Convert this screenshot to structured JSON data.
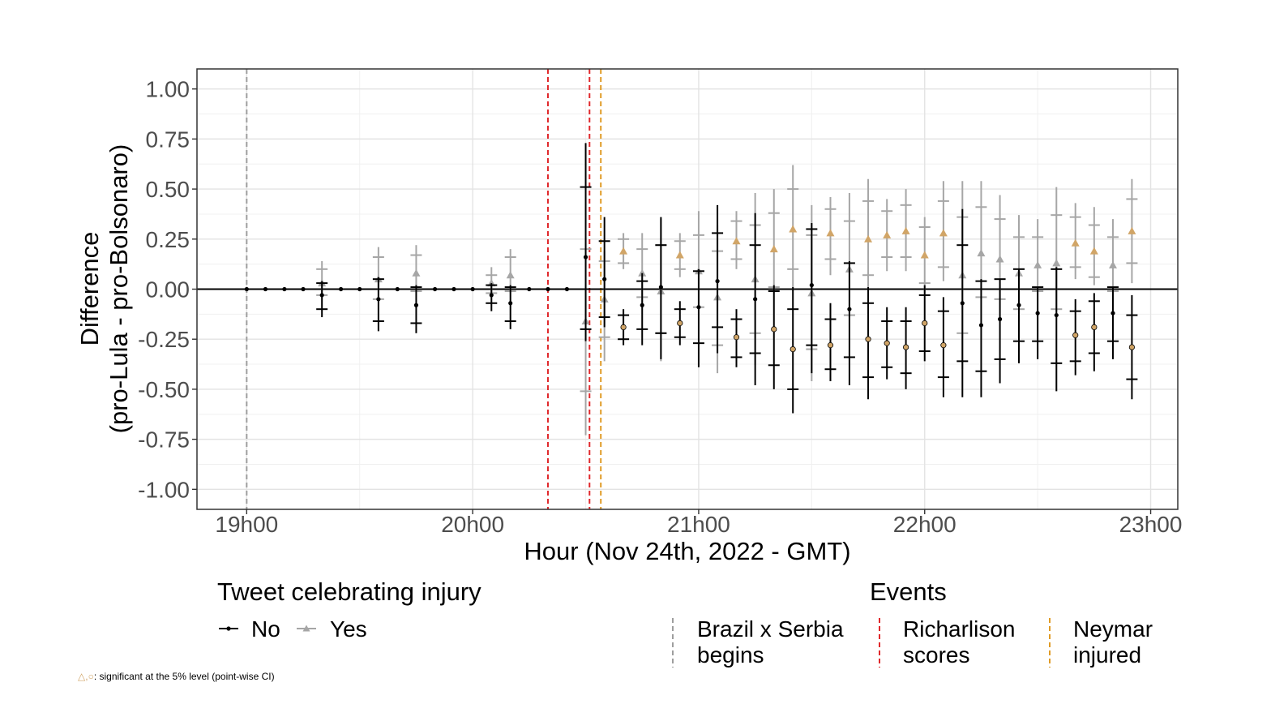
{
  "colors": {
    "no": "#000000",
    "yes": "#a6a6a6",
    "significant": "#d1a567",
    "event_match_start": "#9e9e9e",
    "event_goal": "#e0282b",
    "event_injury": "#e09b26"
  },
  "chart_data": {
    "type": "scatter",
    "xlabel": "Hour (Nov 24th, 2022 - GMT)",
    "ylabel_line1": "Difference",
    "ylabel_line2": "(pro-Lula - pro-Bolsonaro)",
    "xlim": [
      18.78,
      23.12
    ],
    "ylim": [
      -1.1,
      1.1
    ],
    "x_ticks": [
      19,
      20,
      21,
      22,
      23
    ],
    "x_tick_labels": [
      "19h00",
      "20h00",
      "21h00",
      "22h00",
      "23h00"
    ],
    "y_ticks": [
      1.0,
      0.75,
      0.5,
      0.25,
      0.0,
      -0.25,
      -0.5,
      -0.75,
      -1.0
    ],
    "y_tick_labels": [
      "1.00",
      "0.75",
      "0.50",
      "0.25",
      "0.00",
      "-0.25",
      "-0.50",
      "-0.75",
      "-1.00"
    ],
    "reference_line_y": 0,
    "events": [
      {
        "x": 19.0,
        "color_key": "event_match_start",
        "label_line1": "Brazil x Serbia",
        "label_line2": "begins"
      },
      {
        "x": 20.333,
        "color_key": "event_goal",
        "label_line1": "Richarlison",
        "label_line2": "scores"
      },
      {
        "x": 20.517,
        "color_key": "event_goal",
        "label_line1": "Richarlison",
        "label_line2": "scores"
      },
      {
        "x": 20.567,
        "color_key": "event_injury",
        "label_line1": "Neymar",
        "label_line2": "injured"
      }
    ],
    "series": [
      {
        "name": "No",
        "color_key": "no",
        "shape": "circle",
        "points": [
          {
            "x": 19.0,
            "y": 0.0
          },
          {
            "x": 19.083,
            "y": 0.0
          },
          {
            "x": 19.167,
            "y": 0.0
          },
          {
            "x": 19.25,
            "y": 0.0
          },
          {
            "x": 19.333,
            "y": -0.03,
            "lo": -0.14,
            "hi": 0.04,
            "t1": -0.1,
            "t2": 0.03
          },
          {
            "x": 19.417,
            "y": 0.0
          },
          {
            "x": 19.5,
            "y": 0.0
          },
          {
            "x": 19.583,
            "y": -0.05,
            "lo": -0.21,
            "hi": 0.06,
            "t1": -0.16,
            "t2": 0.05
          },
          {
            "x": 19.667,
            "y": 0.0
          },
          {
            "x": 19.75,
            "y": -0.08,
            "lo": -0.22,
            "hi": 0.02,
            "t1": -0.17,
            "t2": 0.01
          },
          {
            "x": 19.833,
            "y": 0.0
          },
          {
            "x": 19.917,
            "y": 0.0
          },
          {
            "x": 20.0,
            "y": 0.0
          },
          {
            "x": 20.083,
            "y": -0.03,
            "lo": -0.11,
            "hi": 0.03,
            "t1": -0.07,
            "t2": 0.02
          },
          {
            "x": 20.167,
            "y": -0.07,
            "lo": -0.2,
            "hi": 0.02,
            "t1": -0.16,
            "t2": 0.01
          },
          {
            "x": 20.25,
            "y": 0.0
          },
          {
            "x": 20.333,
            "y": 0.0
          },
          {
            "x": 20.417,
            "y": 0.0
          },
          {
            "x": 20.5,
            "y": 0.16,
            "lo": -0.26,
            "hi": 0.73,
            "t1": -0.2,
            "t2": 0.51
          },
          {
            "x": 20.583,
            "y": 0.05,
            "lo": -0.19,
            "hi": 0.36,
            "t1": -0.14,
            "t2": 0.24
          },
          {
            "x": 20.667,
            "y": -0.19,
            "sig": true,
            "lo": -0.28,
            "hi": -0.1,
            "t1": -0.25,
            "t2": -0.13
          },
          {
            "x": 20.75,
            "y": -0.08,
            "lo": -0.28,
            "hi": 0.08,
            "t1": -0.2,
            "t2": 0.04
          },
          {
            "x": 20.833,
            "y": 0.01,
            "lo": -0.35,
            "hi": 0.36,
            "t1": -0.22,
            "t2": 0.22
          },
          {
            "x": 20.917,
            "y": -0.17,
            "sig": true,
            "lo": -0.28,
            "hi": -0.06,
            "t1": -0.24,
            "t2": -0.1
          },
          {
            "x": 21.0,
            "y": -0.09,
            "lo": -0.39,
            "hi": 0.1,
            "t1": -0.27,
            "t2": 0.09
          },
          {
            "x": 21.083,
            "y": 0.04,
            "lo": -0.32,
            "hi": 0.42,
            "t1": -0.19,
            "t2": 0.28
          },
          {
            "x": 21.167,
            "y": -0.24,
            "sig": true,
            "lo": -0.39,
            "hi": -0.1,
            "t1": -0.34,
            "t2": -0.15
          },
          {
            "x": 21.25,
            "y": -0.05,
            "lo": -0.48,
            "hi": 0.38,
            "t1": -0.32,
            "t2": 0.22
          },
          {
            "x": 21.333,
            "y": -0.2,
            "sig": true,
            "lo": -0.5,
            "hi": 0.02,
            "t1": -0.38,
            "t2": -0.01
          },
          {
            "x": 21.417,
            "y": -0.3,
            "sig": true,
            "lo": -0.62,
            "hi": 0.01,
            "t1": -0.5,
            "t2": -0.1
          },
          {
            "x": 21.5,
            "y": 0.02,
            "lo": -0.42,
            "hi": 0.33,
            "t1": -0.28,
            "t2": 0.3
          },
          {
            "x": 21.583,
            "y": -0.28,
            "sig": true,
            "lo": -0.46,
            "hi": -0.07,
            "t1": -0.4,
            "t2": -0.15
          },
          {
            "x": 21.667,
            "y": -0.1,
            "lo": -0.48,
            "hi": 0.14,
            "t1": -0.34,
            "t2": 0.13
          },
          {
            "x": 21.75,
            "y": -0.25,
            "sig": true,
            "lo": -0.55,
            "hi": 0.01,
            "t1": -0.44,
            "t2": -0.07
          },
          {
            "x": 21.833,
            "y": -0.27,
            "sig": true,
            "lo": -0.45,
            "hi": -0.09,
            "t1": -0.39,
            "t2": -0.16
          },
          {
            "x": 21.917,
            "y": -0.29,
            "sig": true,
            "lo": -0.5,
            "hi": -0.09,
            "t1": -0.42,
            "t2": -0.16
          },
          {
            "x": 22.0,
            "y": -0.17,
            "sig": true,
            "lo": -0.36,
            "hi": 0.02,
            "t1": -0.31,
            "t2": -0.03
          },
          {
            "x": 22.083,
            "y": -0.28,
            "sig": true,
            "lo": -0.54,
            "hi": -0.04,
            "t1": -0.44,
            "t2": -0.11
          },
          {
            "x": 22.167,
            "y": -0.07,
            "lo": -0.54,
            "hi": 0.4,
            "t1": -0.36,
            "t2": 0.22
          },
          {
            "x": 22.25,
            "y": -0.18,
            "lo": -0.54,
            "hi": 0.05,
            "t1": -0.41,
            "t2": 0.04
          },
          {
            "x": 22.333,
            "y": -0.15,
            "lo": -0.47,
            "hi": 0.05,
            "t1": -0.35,
            "t2": 0.05
          },
          {
            "x": 22.417,
            "y": -0.08,
            "lo": -0.37,
            "hi": 0.1,
            "t1": -0.26,
            "t2": 0.1
          },
          {
            "x": 22.5,
            "y": -0.12,
            "lo": -0.35,
            "hi": 0.01,
            "t1": -0.26,
            "t2": 0.01
          },
          {
            "x": 22.583,
            "y": -0.13,
            "lo": -0.51,
            "hi": 0.11,
            "t1": -0.37,
            "t2": 0.1
          },
          {
            "x": 22.667,
            "y": -0.23,
            "sig": true,
            "lo": -0.43,
            "hi": -0.05,
            "t1": -0.36,
            "t2": -0.11
          },
          {
            "x": 22.75,
            "y": -0.19,
            "sig": true,
            "lo": -0.41,
            "hi": -0.02,
            "t1": -0.32,
            "t2": -0.06
          },
          {
            "x": 22.833,
            "y": -0.12,
            "lo": -0.35,
            "hi": 0.01,
            "t1": -0.26,
            "t2": 0.01
          },
          {
            "x": 22.917,
            "y": -0.29,
            "sig": true,
            "lo": -0.55,
            "hi": -0.03,
            "t1": -0.45,
            "t2": -0.13
          }
        ]
      },
      {
        "name": "Yes",
        "color_key": "yes",
        "shape": "triangle",
        "points": [
          {
            "x": 19.333,
            "y": 0.03,
            "lo": -0.04,
            "hi": 0.14,
            "t1": -0.03,
            "t2": 0.1
          },
          {
            "x": 19.583,
            "y": 0.05,
            "lo": -0.06,
            "hi": 0.21,
            "t1": -0.05,
            "t2": 0.16
          },
          {
            "x": 19.75,
            "y": 0.08,
            "lo": -0.02,
            "hi": 0.22,
            "t1": -0.01,
            "t2": 0.17
          },
          {
            "x": 20.083,
            "y": 0.03,
            "lo": -0.03,
            "hi": 0.11,
            "t1": -0.02,
            "t2": 0.07
          },
          {
            "x": 20.167,
            "y": 0.07,
            "lo": -0.02,
            "hi": 0.2,
            "t1": -0.01,
            "t2": 0.16
          },
          {
            "x": 20.5,
            "y": -0.16,
            "lo": -0.73,
            "hi": 0.26,
            "t1": -0.51,
            "t2": 0.2
          },
          {
            "x": 20.583,
            "y": -0.05,
            "lo": -0.36,
            "hi": 0.19,
            "t1": -0.24,
            "t2": 0.14
          },
          {
            "x": 20.667,
            "y": 0.19,
            "sig": true,
            "lo": 0.1,
            "hi": 0.28,
            "t1": 0.13,
            "t2": 0.25
          },
          {
            "x": 20.75,
            "y": 0.08,
            "lo": -0.08,
            "hi": 0.28,
            "t1": -0.04,
            "t2": 0.2
          },
          {
            "x": 20.833,
            "y": -0.01,
            "lo": -0.36,
            "hi": 0.35,
            "t1": -0.22,
            "t2": 0.22
          },
          {
            "x": 20.917,
            "y": 0.17,
            "sig": true,
            "lo": 0.06,
            "hi": 0.28,
            "t1": 0.1,
            "t2": 0.24
          },
          {
            "x": 21.0,
            "y": 0.09,
            "lo": -0.1,
            "hi": 0.39,
            "t1": -0.09,
            "t2": 0.27
          },
          {
            "x": 21.083,
            "y": -0.04,
            "lo": -0.42,
            "hi": 0.32,
            "t1": -0.28,
            "t2": 0.19
          },
          {
            "x": 21.167,
            "y": 0.24,
            "sig": true,
            "lo": 0.1,
            "hi": 0.39,
            "t1": 0.15,
            "t2": 0.34
          },
          {
            "x": 21.25,
            "y": 0.05,
            "lo": -0.38,
            "hi": 0.48,
            "t1": -0.22,
            "t2": 0.32
          },
          {
            "x": 21.333,
            "y": 0.2,
            "sig": true,
            "lo": -0.02,
            "hi": 0.5,
            "t1": 0.01,
            "t2": 0.38
          },
          {
            "x": 21.417,
            "y": 0.3,
            "sig": true,
            "lo": -0.01,
            "hi": 0.62,
            "t1": 0.1,
            "t2": 0.5
          },
          {
            "x": 21.5,
            "y": -0.02,
            "lo": -0.46,
            "hi": 0.42,
            "t1": -0.3,
            "t2": 0.27
          },
          {
            "x": 21.583,
            "y": 0.28,
            "sig": true,
            "lo": 0.07,
            "hi": 0.46,
            "t1": 0.15,
            "t2": 0.4
          },
          {
            "x": 21.667,
            "y": 0.1,
            "lo": -0.14,
            "hi": 0.48,
            "t1": -0.13,
            "t2": 0.34
          },
          {
            "x": 21.75,
            "y": 0.25,
            "sig": true,
            "lo": -0.01,
            "hi": 0.55,
            "t1": 0.07,
            "t2": 0.44
          },
          {
            "x": 21.833,
            "y": 0.27,
            "sig": true,
            "lo": 0.09,
            "hi": 0.45,
            "t1": 0.16,
            "t2": 0.39
          },
          {
            "x": 21.917,
            "y": 0.29,
            "sig": true,
            "lo": 0.09,
            "hi": 0.5,
            "t1": 0.16,
            "t2": 0.42
          },
          {
            "x": 22.0,
            "y": 0.17,
            "sig": true,
            "lo": -0.02,
            "hi": 0.36,
            "t1": 0.03,
            "t2": 0.31
          },
          {
            "x": 22.083,
            "y": 0.28,
            "sig": true,
            "lo": 0.04,
            "hi": 0.54,
            "t1": 0.11,
            "t2": 0.44
          },
          {
            "x": 22.167,
            "y": 0.07,
            "lo": -0.4,
            "hi": 0.54,
            "t1": -0.22,
            "t2": 0.36
          },
          {
            "x": 22.25,
            "y": 0.18,
            "lo": -0.05,
            "hi": 0.54,
            "t1": -0.04,
            "t2": 0.41
          },
          {
            "x": 22.333,
            "y": 0.15,
            "lo": -0.05,
            "hi": 0.47,
            "t1": -0.05,
            "t2": 0.35
          },
          {
            "x": 22.417,
            "y": 0.08,
            "lo": -0.1,
            "hi": 0.37,
            "t1": -0.1,
            "t2": 0.26
          },
          {
            "x": 22.5,
            "y": 0.12,
            "lo": -0.01,
            "hi": 0.35,
            "t1": -0.01,
            "t2": 0.26
          },
          {
            "x": 22.583,
            "y": 0.13,
            "lo": -0.11,
            "hi": 0.51,
            "t1": -0.1,
            "t2": 0.37
          },
          {
            "x": 22.667,
            "y": 0.23,
            "sig": true,
            "lo": 0.05,
            "hi": 0.43,
            "t1": 0.11,
            "t2": 0.36
          },
          {
            "x": 22.75,
            "y": 0.19,
            "sig": true,
            "lo": 0.02,
            "hi": 0.41,
            "t1": 0.06,
            "t2": 0.32
          },
          {
            "x": 22.833,
            "y": 0.12,
            "lo": -0.01,
            "hi": 0.35,
            "t1": -0.01,
            "t2": 0.26
          },
          {
            "x": 22.917,
            "y": 0.29,
            "sig": true,
            "lo": 0.03,
            "hi": 0.55,
            "t1": 0.13,
            "t2": 0.45
          }
        ]
      }
    ]
  },
  "legend": {
    "tweet_title": "Tweet celebrating injury",
    "no_label": "No",
    "yes_label": "Yes",
    "events_title": "Events",
    "event1_line1": "Brazil x Serbia",
    "event1_line2": "begins",
    "event2_line1": "Richarlison",
    "event2_line2": "scores",
    "event3_line1": "Neymar",
    "event3_line2": "injured"
  },
  "footnote": {
    "symbols": "△,○",
    "text": ": significant at the 5% level (point-wise  CI)"
  }
}
